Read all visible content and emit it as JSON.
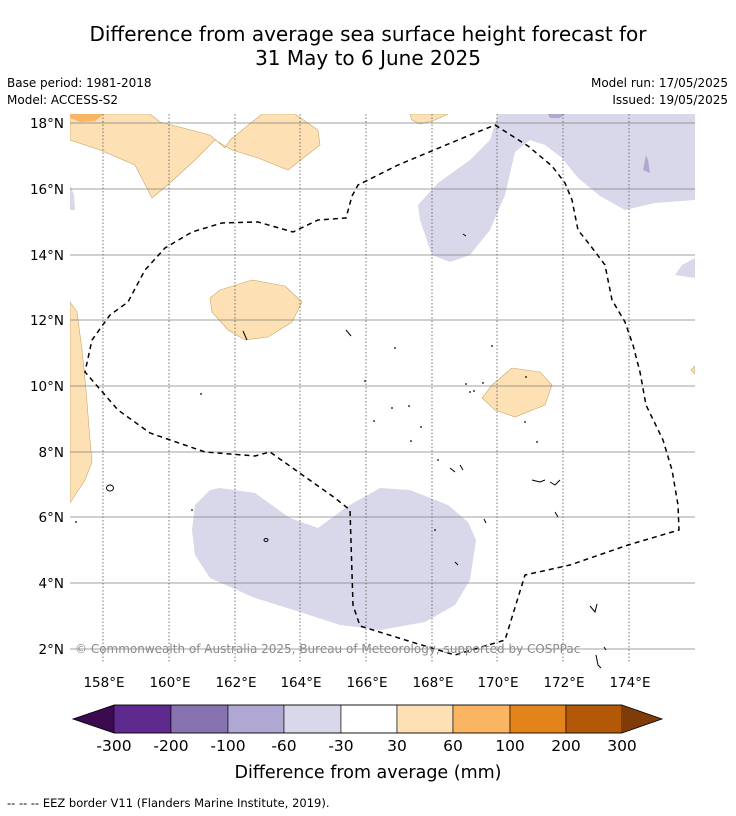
{
  "title": {
    "line1": "Difference from average sea surface height forecast for",
    "line2": "31 May to 6 June 2025"
  },
  "meta": {
    "base_period": "Base period: 1981-2018",
    "model": "Model: ACCESS-S2",
    "model_run": "Model run: 17/05/2025",
    "issued": "Issued: 19/05/2025"
  },
  "map": {
    "lon_labels": [
      "158°E",
      "160°E",
      "162°E",
      "164°E",
      "166°E",
      "168°E",
      "170°E",
      "172°E",
      "174°E"
    ],
    "lat_labels": [
      "18°N",
      "16°N",
      "14°N",
      "12°N",
      "10°N",
      "8°N",
      "6°N",
      "4°N",
      "2°N"
    ],
    "copyright": "© Commonwealth of Australia 2025, Bureau of Meteorology, supported by COSPPac",
    "colors": {
      "neg_30_60": "#d8d8ea",
      "pos_30_60": "#fde0b4",
      "pos_60_100": "#fab563",
      "eez_border": "#000000"
    }
  },
  "colorbar": {
    "title": "Difference from average (mm)",
    "tick_labels": [
      "-300",
      "-200",
      "-100",
      "-60",
      "-30",
      "30",
      "60",
      "100",
      "200",
      "300"
    ],
    "colors": [
      "#3b0a4f",
      "#5e2a8e",
      "#8673b0",
      "#b0a8d2",
      "#d8d8ea",
      "#ffffff",
      "#fde0b4",
      "#fab563",
      "#e2831b",
      "#b35806",
      "#7f3b08"
    ]
  },
  "footnote": "--  --  -- EEZ border V11 (Flanders Marine Institute, 2019)."
}
